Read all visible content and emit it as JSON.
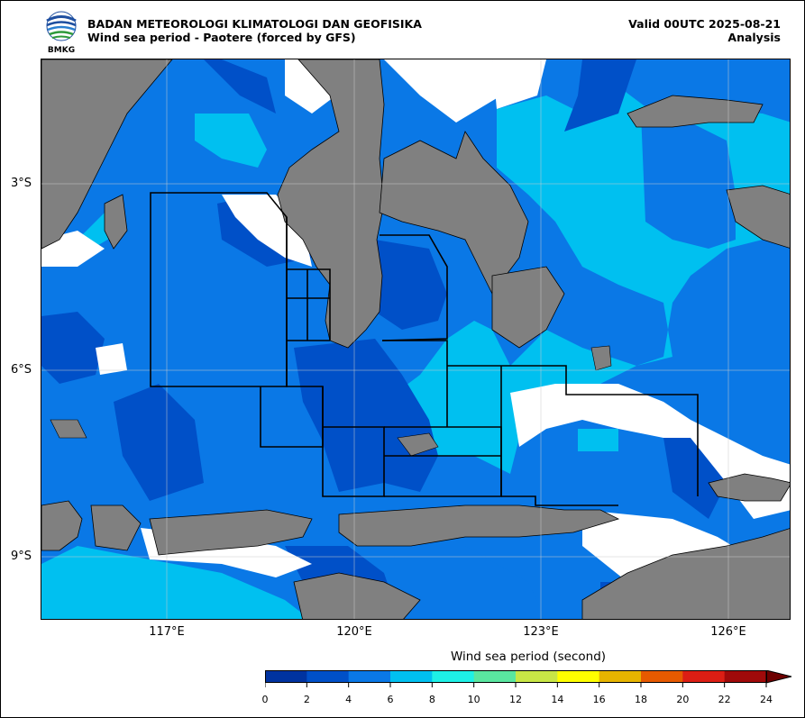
{
  "header": {
    "agency": "BADAN METEOROLOGI KLIMATOLOGI DAN GEOFISIKA",
    "product": "Wind sea period - Paotere (forced by GFS)",
    "valid": "Valid 00UTC 2025-08-21",
    "type": "Analysis",
    "logo_text": "BMKG"
  },
  "map": {
    "lat_labels": [
      "3°S",
      "6°S",
      "9°S"
    ],
    "lon_labels": [
      "117°E",
      "120°E",
      "123°E",
      "126°E"
    ]
  },
  "colorbar": {
    "title": "Wind sea period (second)",
    "ticks": [
      "0",
      "2",
      "4",
      "6",
      "8",
      "10",
      "12",
      "14",
      "16",
      "18",
      "20",
      "22",
      "24"
    ],
    "colors": [
      "#0033a0",
      "#0050c8",
      "#0a78e6",
      "#00c0f0",
      "#1ef0e6",
      "#5ae6a0",
      "#c8e646",
      "#ffff00",
      "#e6b400",
      "#e65a00",
      "#dc1e14",
      "#a00a0a"
    ]
  },
  "palette": {
    "land": "#808080",
    "no_data": "#ffffff",
    "p2_4": "#0050c8",
    "p4_6": "#0a78e6",
    "p6_8": "#00c0f0"
  }
}
